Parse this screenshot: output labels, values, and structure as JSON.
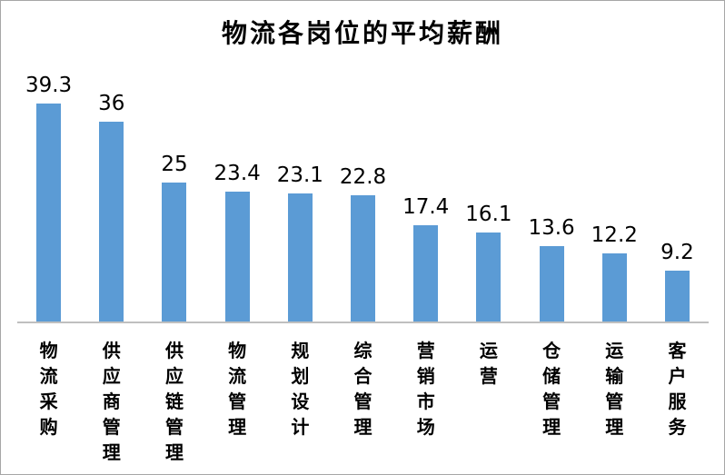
{
  "title": "物流各岗位的平均薪酬",
  "chart_data": {
    "type": "bar",
    "title": "物流各岗位的平均薪酬",
    "categories": [
      "物流采购",
      "供应商管理",
      "供应链管理",
      "物流管理",
      "规划设计",
      "综合管理",
      "营销市场",
      "运营",
      "仓储管理",
      "运输管理",
      "客户服务"
    ],
    "values": [
      39.3,
      36,
      25,
      23.4,
      23.1,
      22.8,
      17.4,
      16.1,
      13.6,
      12.2,
      9.2
    ],
    "xlabel": "",
    "ylabel": "",
    "ylim": [
      0,
      40
    ],
    "grid": false,
    "legend": null,
    "value_labels_shown": true,
    "category_label_orientation": "vertical",
    "colors": {
      "bar": "#5B9BD5",
      "axis_line": "#BFBFBF",
      "text": "#000000",
      "frame_border": "#A6A6A6"
    }
  }
}
